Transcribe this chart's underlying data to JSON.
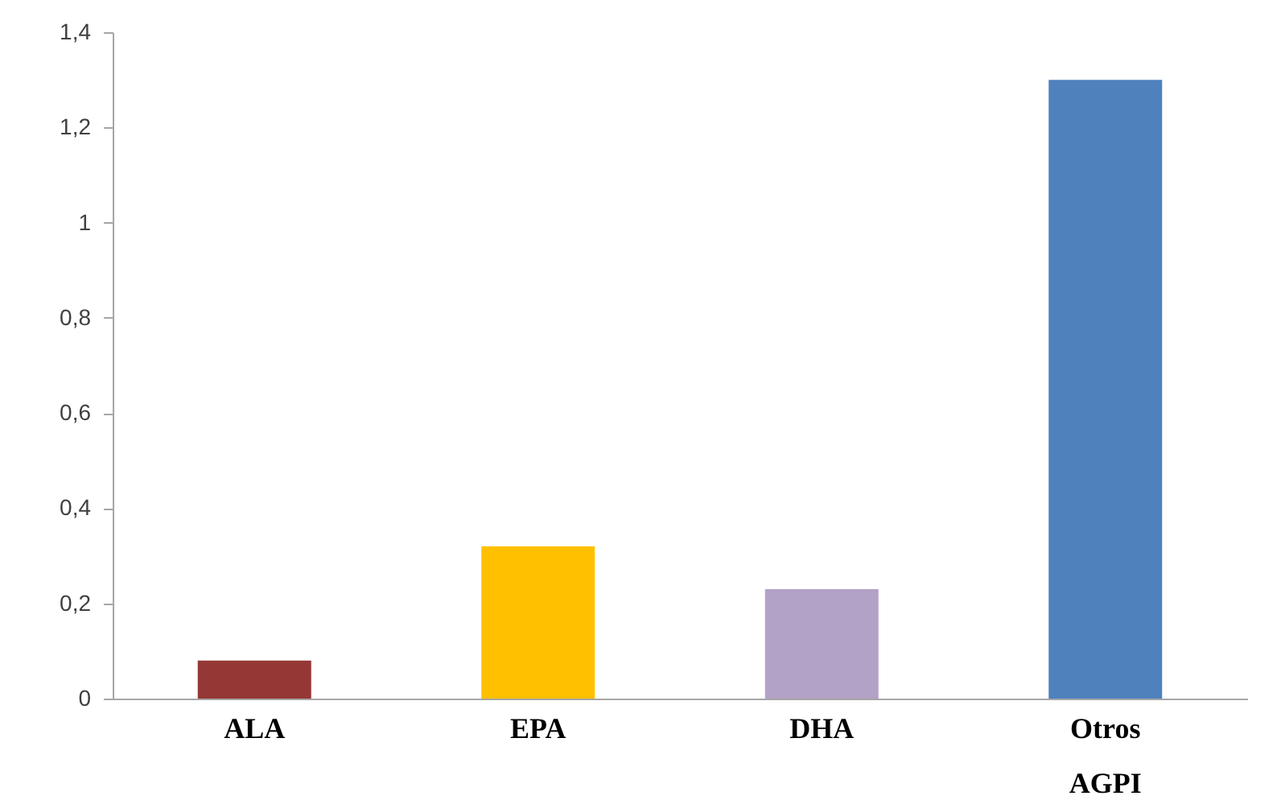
{
  "chart_data": {
    "type": "bar",
    "categories": [
      "ALA",
      "EPA",
      "DHA",
      "Otros AGPI"
    ],
    "values": [
      0.08,
      0.32,
      0.23,
      1.3
    ],
    "colors": [
      "#953735",
      "#ffc000",
      "#b3a2c7",
      "#4f81bd"
    ],
    "ylim": [
      0,
      1.4
    ],
    "yticks": [
      0,
      {
        "value": 0.2,
        "label": "0,2"
      },
      {
        "value": 0.4,
        "label": "0,4"
      },
      {
        "value": 0.6,
        "label": "0,6"
      },
      {
        "value": 0.8,
        "label": "0,8"
      },
      1,
      {
        "value": 1.2,
        "label": "1,2"
      },
      {
        "value": 1.4,
        "label": "1,4"
      }
    ]
  }
}
